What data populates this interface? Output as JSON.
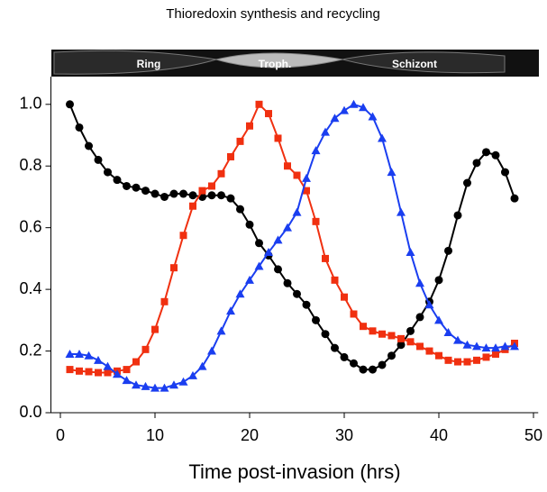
{
  "chart_data": {
    "type": "line",
    "title": "Thioredoxin synthesis and recycling",
    "x_label": "Time post-invasion (hrs)",
    "stages": [
      "Ring",
      "Troph.",
      "Schizont"
    ],
    "x": [
      1,
      2,
      3,
      4,
      5,
      6,
      7,
      8,
      9,
      10,
      11,
      12,
      13,
      14,
      15,
      16,
      17,
      18,
      19,
      20,
      21,
      22,
      23,
      24,
      25,
      26,
      27,
      28,
      29,
      30,
      31,
      32,
      33,
      34,
      35,
      36,
      37,
      38,
      39,
      40,
      41,
      42,
      43,
      44,
      45,
      46,
      47,
      48
    ],
    "series": [
      {
        "color": "#000000",
        "marker": "circle",
        "values": [
          1.0,
          0.925,
          0.865,
          0.82,
          0.78,
          0.755,
          0.735,
          0.73,
          0.72,
          0.71,
          0.7,
          0.71,
          0.71,
          0.705,
          0.7,
          0.705,
          0.705,
          0.695,
          0.66,
          0.61,
          0.55,
          0.51,
          0.465,
          0.42,
          0.385,
          0.35,
          0.3,
          0.255,
          0.21,
          0.18,
          0.16,
          0.14,
          0.14,
          0.155,
          0.185,
          0.22,
          0.265,
          0.31,
          0.36,
          0.43,
          0.525,
          0.64,
          0.745,
          0.81,
          0.845,
          0.835,
          0.78,
          0.695
        ]
      },
      {
        "color": "#f03010",
        "marker": "square",
        "values": [
          0.14,
          0.135,
          0.133,
          0.13,
          0.13,
          0.135,
          0.14,
          0.165,
          0.205,
          0.27,
          0.36,
          0.47,
          0.575,
          0.67,
          0.72,
          0.735,
          0.775,
          0.83,
          0.88,
          0.93,
          1.0,
          0.97,
          0.89,
          0.8,
          0.77,
          0.72,
          0.62,
          0.5,
          0.43,
          0.375,
          0.32,
          0.28,
          0.265,
          0.255,
          0.25,
          0.24,
          0.23,
          0.215,
          0.2,
          0.185,
          0.17,
          0.165,
          0.165,
          0.17,
          0.18,
          0.19,
          0.205,
          0.225
        ]
      },
      {
        "color": "#1a3ef0",
        "marker": "triangle",
        "values": [
          0.19,
          0.19,
          0.185,
          0.17,
          0.15,
          0.125,
          0.105,
          0.09,
          0.085,
          0.08,
          0.08,
          0.09,
          0.1,
          0.12,
          0.15,
          0.2,
          0.265,
          0.33,
          0.385,
          0.43,
          0.475,
          0.52,
          0.56,
          0.6,
          0.65,
          0.76,
          0.85,
          0.91,
          0.955,
          0.98,
          1.0,
          0.99,
          0.96,
          0.89,
          0.78,
          0.65,
          0.52,
          0.42,
          0.35,
          0.3,
          0.26,
          0.235,
          0.22,
          0.215,
          0.21,
          0.21,
          0.215,
          0.215
        ]
      }
    ],
    "xlim": [
      -1,
      50.5
    ],
    "ylim": [
      0,
      1.09
    ],
    "xticks": [
      0,
      10,
      20,
      30,
      40,
      50
    ],
    "yticks": [
      {
        "value": 0,
        "label": "0.0"
      },
      {
        "value": 0.2,
        "label": "0.2"
      },
      {
        "value": 0.4,
        "label": "0.4"
      },
      {
        "value": 0.6,
        "label": "0.6"
      },
      {
        "value": 0.8,
        "label": "0.8"
      },
      {
        "value": 1,
        "label": "1.0"
      }
    ]
  }
}
